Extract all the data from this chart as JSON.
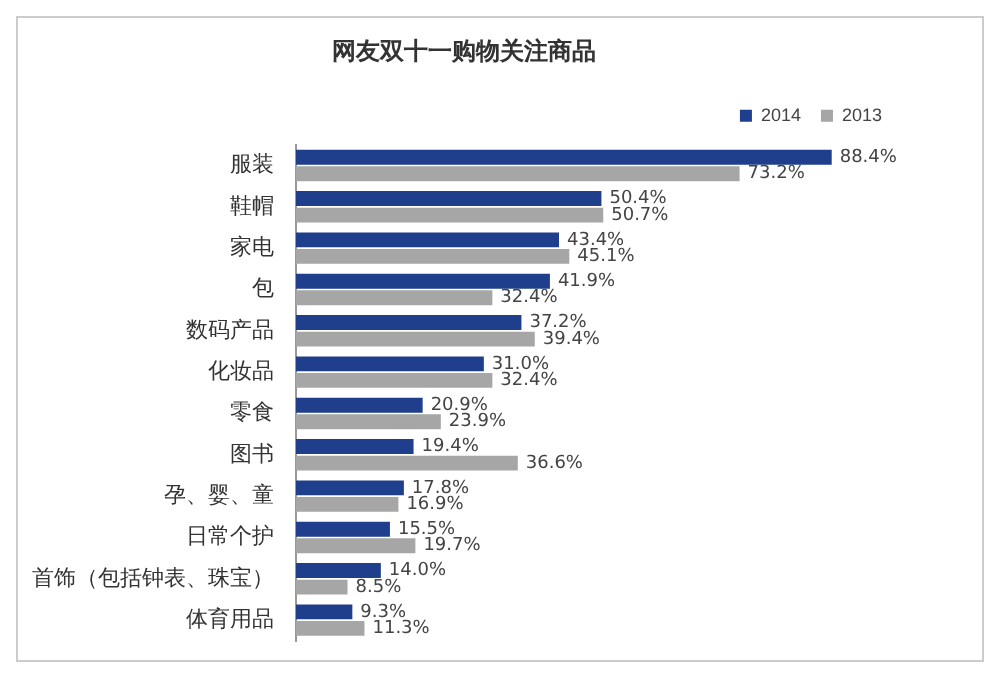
{
  "chart_data": {
    "type": "bar",
    "orientation": "horizontal",
    "title": "网友双十一购物关注商品",
    "categories": [
      "服装",
      "鞋帽",
      "家电",
      "包",
      "数码产品",
      "化妆品",
      "零食",
      "图书",
      "孕、婴、童",
      "日常个护",
      "首饰（包括钟表、珠宝）",
      "体育用品"
    ],
    "series": [
      {
        "name": "2014",
        "color": "#1f3f8c",
        "values": [
          88.4,
          50.4,
          43.4,
          41.9,
          37.2,
          31.0,
          20.9,
          19.4,
          17.8,
          15.5,
          14.0,
          9.3
        ],
        "value_labels": [
          "88.4%",
          "50.4%",
          "43.4%",
          "41.9%",
          "37.2%",
          "31.0%",
          "20.9%",
          "19.4%",
          "17.8%",
          "15.5%",
          "14.0%",
          "9.3%"
        ]
      },
      {
        "name": "2013",
        "color": "#a6a6a6",
        "values": [
          73.2,
          50.7,
          45.1,
          32.4,
          39.4,
          32.4,
          23.9,
          36.6,
          16.9,
          19.7,
          8.5,
          11.3
        ],
        "value_labels": [
          "73.2%",
          "50.7%",
          "45.1%",
          "32.4%",
          "39.4%",
          "32.4%",
          "23.9%",
          "36.6%",
          "16.9%",
          "19.7%",
          "8.5%",
          "11.3%"
        ]
      }
    ],
    "legend": "top",
    "grid": false
  }
}
